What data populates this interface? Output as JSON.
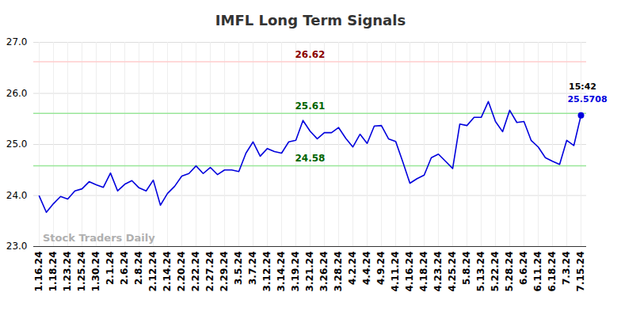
{
  "chart_data": {
    "type": "line",
    "title": "IMFL Long Term Signals",
    "watermark": "Stock Traders Daily",
    "categories": [
      "1.16.24",
      null,
      "1.18.24",
      null,
      "1.23.24",
      null,
      "1.25.24",
      null,
      "1.30.24",
      null,
      "2.1.24",
      null,
      "2.6.24",
      null,
      "2.8.24",
      null,
      "2.12.24",
      null,
      "2.14.24",
      null,
      "2.20.24",
      null,
      "2.22.24",
      null,
      "2.27.24",
      null,
      "2.29.24",
      null,
      "3.5.24",
      null,
      "3.7.24",
      null,
      "3.12.24",
      null,
      "3.14.24",
      null,
      "3.19.24",
      null,
      "3.21.24",
      null,
      "3.26.24",
      null,
      "3.28.24",
      null,
      "4.2.24",
      null,
      "4.4.24",
      null,
      "4.9.24",
      null,
      "4.11.24",
      null,
      "4.16.24",
      null,
      "4.18.24",
      null,
      "4.23.24",
      null,
      "4.25.24",
      null,
      "5.8.24",
      null,
      "5.13.24",
      null,
      "5.22.24",
      null,
      "5.28.24",
      null,
      "6.6.24",
      null,
      "6.11.24",
      null,
      "6.18.24",
      null,
      "7.3.24",
      null,
      "7.15.24"
    ],
    "values": [
      23.99,
      23.67,
      23.84,
      23.98,
      23.93,
      24.09,
      24.13,
      24.27,
      24.21,
      24.16,
      24.44,
      24.09,
      24.22,
      24.29,
      24.15,
      24.09,
      24.3,
      23.81,
      24.04,
      24.18,
      24.38,
      24.43,
      24.58,
      24.43,
      24.55,
      24.41,
      24.5,
      24.5,
      24.47,
      24.83,
      25.05,
      24.77,
      24.92,
      24.86,
      24.83,
      25.05,
      25.08,
      25.47,
      25.26,
      25.11,
      25.23,
      25.23,
      25.33,
      25.12,
      24.95,
      25.2,
      25.02,
      25.36,
      25.37,
      25.11,
      25.06,
      24.66,
      24.24,
      24.33,
      24.4,
      24.74,
      24.81,
      24.67,
      24.53,
      25.4,
      25.37,
      25.53,
      25.53,
      25.84,
      25.45,
      25.25,
      25.67,
      25.43,
      25.45,
      25.08,
      24.95,
      24.74,
      24.67,
      24.61,
      25.08,
      24.98,
      25.5708
    ],
    "color": "#0000dd",
    "last_point_time": "15:42",
    "reference_lines": [
      {
        "value": 26.62,
        "label": "26.62",
        "color": "#ffcccc"
      },
      {
        "value": 25.61,
        "label": "25.61",
        "color": "#99e699"
      },
      {
        "value": 24.58,
        "label": "24.58",
        "color": "#99e699"
      }
    ],
    "ylim": [
      23,
      27
    ],
    "yticks": [
      23,
      24,
      25,
      26,
      27
    ],
    "grid": true
  }
}
